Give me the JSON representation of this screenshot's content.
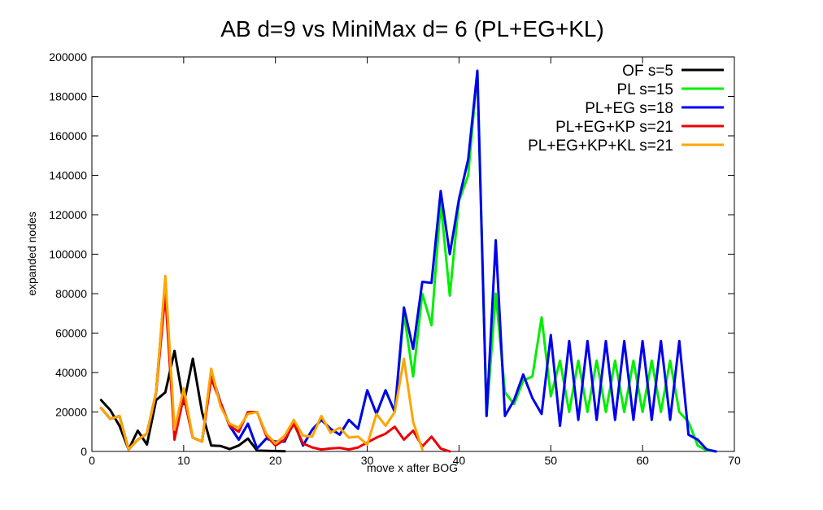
{
  "chart_data": {
    "type": "line",
    "title": "AB d=9 vs MiniMax d= 6 (PL+EG+KL)",
    "xlabel": "move x after BOG",
    "ylabel": "expanded nodes",
    "xlim": [
      0,
      70
    ],
    "ylim": [
      0,
      200000
    ],
    "x_ticks": [
      "0",
      "10",
      "20",
      "30",
      "40",
      "50",
      "60",
      "70"
    ],
    "y_ticks": [
      "0",
      "20000",
      "40000",
      "60000",
      "80000",
      "100000",
      "120000",
      "140000",
      "160000",
      "180000",
      "200000"
    ],
    "legend_position": "top-right",
    "grid": false,
    "series": [
      {
        "name": "OF s=5",
        "color": "#000000",
        "points": [
          [
            1,
            26000
          ],
          [
            2,
            21000
          ],
          [
            3,
            13000
          ],
          [
            4,
            1000
          ],
          [
            5,
            10500
          ],
          [
            6,
            3500
          ],
          [
            7,
            26000
          ],
          [
            8,
            30000
          ],
          [
            9,
            51000
          ],
          [
            10,
            24000
          ],
          [
            11,
            47000
          ],
          [
            12,
            20000
          ],
          [
            13,
            3000
          ],
          [
            14,
            2800
          ],
          [
            15,
            1200
          ],
          [
            16,
            3000
          ],
          [
            17,
            6500
          ],
          [
            18,
            400
          ],
          [
            19,
            300
          ],
          [
            20,
            200
          ],
          [
            21,
            100
          ]
        ]
      },
      {
        "name": "PL s=15",
        "color": "#00ee00",
        "points": [
          [
            1,
            22000
          ],
          [
            2,
            16500
          ],
          [
            3,
            18000
          ],
          [
            4,
            1000
          ],
          [
            5,
            6000
          ],
          [
            6,
            9000
          ],
          [
            7,
            30000
          ],
          [
            8,
            87000
          ],
          [
            9,
            8000
          ],
          [
            10,
            28000
          ],
          [
            11,
            7000
          ],
          [
            12,
            5000
          ],
          [
            13,
            40000
          ],
          [
            14,
            25000
          ],
          [
            15,
            13000
          ],
          [
            16,
            6000
          ],
          [
            17,
            14000
          ],
          [
            18,
            1500
          ],
          [
            19,
            6500
          ],
          [
            20,
            5000
          ],
          [
            21,
            5000
          ],
          [
            22,
            15000
          ],
          [
            23,
            3000
          ],
          [
            24,
            11000
          ],
          [
            25,
            16000
          ],
          [
            26,
            11500
          ],
          [
            27,
            8500
          ],
          [
            28,
            16000
          ],
          [
            29,
            11500
          ],
          [
            30,
            31000
          ],
          [
            31,
            19000
          ],
          [
            32,
            31000
          ],
          [
            33,
            20000
          ],
          [
            34,
            70000
          ],
          [
            35,
            38000
          ],
          [
            36,
            80000
          ],
          [
            37,
            64000
          ],
          [
            38,
            126000
          ],
          [
            39,
            79000
          ],
          [
            40,
            127000
          ],
          [
            41,
            140000
          ],
          [
            42,
            193000
          ],
          [
            43,
            18000
          ],
          [
            44,
            80000
          ],
          [
            45,
            30000
          ],
          [
            46,
            24000
          ],
          [
            47,
            36000
          ],
          [
            48,
            38000
          ],
          [
            49,
            68000
          ],
          [
            50,
            28000
          ],
          [
            51,
            46000
          ],
          [
            52,
            20000
          ],
          [
            53,
            46000
          ],
          [
            54,
            20000
          ],
          [
            55,
            46000
          ],
          [
            56,
            20000
          ],
          [
            57,
            46000
          ],
          [
            58,
            20000
          ],
          [
            59,
            46000
          ],
          [
            60,
            20000
          ],
          [
            61,
            46000
          ],
          [
            62,
            20000
          ],
          [
            63,
            46000
          ],
          [
            64,
            20000
          ],
          [
            65,
            15000
          ],
          [
            66,
            3000
          ],
          [
            67,
            500
          ],
          [
            68,
            0
          ]
        ]
      },
      {
        "name": "PL+EG s=18",
        "color": "#0000ee",
        "points": [
          [
            1,
            22000
          ],
          [
            2,
            16500
          ],
          [
            3,
            18000
          ],
          [
            4,
            1000
          ],
          [
            5,
            6000
          ],
          [
            6,
            9000
          ],
          [
            7,
            30000
          ],
          [
            8,
            87000
          ],
          [
            9,
            8000
          ],
          [
            10,
            28000
          ],
          [
            11,
            7000
          ],
          [
            12,
            5000
          ],
          [
            13,
            40000
          ],
          [
            14,
            25000
          ],
          [
            15,
            13000
          ],
          [
            16,
            6000
          ],
          [
            17,
            14000
          ],
          [
            18,
            1500
          ],
          [
            19,
            6500
          ],
          [
            20,
            5000
          ],
          [
            21,
            5000
          ],
          [
            22,
            15000
          ],
          [
            23,
            3000
          ],
          [
            24,
            11000
          ],
          [
            25,
            16000
          ],
          [
            26,
            11500
          ],
          [
            27,
            8500
          ],
          [
            28,
            16000
          ],
          [
            29,
            11500
          ],
          [
            30,
            31000
          ],
          [
            31,
            19000
          ],
          [
            32,
            31000
          ],
          [
            33,
            20000
          ],
          [
            34,
            73000
          ],
          [
            35,
            52000
          ],
          [
            36,
            86000
          ],
          [
            37,
            85500
          ],
          [
            38,
            132000
          ],
          [
            39,
            100000
          ],
          [
            40,
            128000
          ],
          [
            41,
            148000
          ],
          [
            42,
            193000
          ],
          [
            43,
            18000
          ],
          [
            44,
            107000
          ],
          [
            45,
            18000
          ],
          [
            46,
            26000
          ],
          [
            47,
            39000
          ],
          [
            48,
            27000
          ],
          [
            49,
            19000
          ],
          [
            50,
            59000
          ],
          [
            51,
            13000
          ],
          [
            52,
            56000
          ],
          [
            53,
            16000
          ],
          [
            54,
            56000
          ],
          [
            55,
            16000
          ],
          [
            56,
            56000
          ],
          [
            57,
            16000
          ],
          [
            58,
            56000
          ],
          [
            59,
            16000
          ],
          [
            60,
            56000
          ],
          [
            61,
            16000
          ],
          [
            62,
            56000
          ],
          [
            63,
            16000
          ],
          [
            64,
            56000
          ],
          [
            65,
            8500
          ],
          [
            66,
            6000
          ],
          [
            67,
            1000
          ],
          [
            68,
            0
          ]
        ]
      },
      {
        "name": "PL+EG+KP s=21",
        "color": "#ee0000",
        "points": [
          [
            1,
            22000
          ],
          [
            2,
            16500
          ],
          [
            3,
            18000
          ],
          [
            4,
            1000
          ],
          [
            5,
            6000
          ],
          [
            6,
            9000
          ],
          [
            7,
            30000
          ],
          [
            8,
            80000
          ],
          [
            9,
            6000
          ],
          [
            10,
            28000
          ],
          [
            11,
            7000
          ],
          [
            12,
            5000
          ],
          [
            13,
            37000
          ],
          [
            14,
            25000
          ],
          [
            15,
            13000
          ],
          [
            16,
            10000
          ],
          [
            17,
            20000
          ],
          [
            18,
            20000
          ],
          [
            19,
            8000
          ],
          [
            20,
            3000
          ],
          [
            21,
            6000
          ],
          [
            22,
            14000
          ],
          [
            23,
            4000
          ],
          [
            24,
            2000
          ],
          [
            25,
            1000
          ],
          [
            26,
            1500
          ],
          [
            27,
            1800
          ],
          [
            28,
            1000
          ],
          [
            29,
            2000
          ],
          [
            30,
            4500
          ],
          [
            31,
            7000
          ],
          [
            32,
            9000
          ],
          [
            33,
            12500
          ],
          [
            34,
            6000
          ],
          [
            35,
            10500
          ],
          [
            36,
            2500
          ],
          [
            37,
            7500
          ],
          [
            38,
            1500
          ],
          [
            39,
            0
          ]
        ]
      },
      {
        "name": "PL+EG+KP+KL s=21",
        "color": "#ffa500",
        "points": [
          [
            1,
            22000
          ],
          [
            2,
            16500
          ],
          [
            3,
            18000
          ],
          [
            4,
            1000
          ],
          [
            5,
            6000
          ],
          [
            6,
            9000
          ],
          [
            7,
            30000
          ],
          [
            8,
            89000
          ],
          [
            9,
            11000
          ],
          [
            10,
            32000
          ],
          [
            11,
            7000
          ],
          [
            12,
            5000
          ],
          [
            13,
            42000
          ],
          [
            14,
            23000
          ],
          [
            15,
            14000
          ],
          [
            16,
            12000
          ],
          [
            17,
            19000
          ],
          [
            18,
            20000
          ],
          [
            19,
            9000
          ],
          [
            20,
            4000
          ],
          [
            21,
            8000
          ],
          [
            22,
            16000
          ],
          [
            23,
            8000
          ],
          [
            24,
            7500
          ],
          [
            25,
            18000
          ],
          [
            26,
            9500
          ],
          [
            27,
            12000
          ],
          [
            28,
            7000
          ],
          [
            29,
            7500
          ],
          [
            30,
            3500
          ],
          [
            31,
            19000
          ],
          [
            32,
            13000
          ],
          [
            33,
            20000
          ],
          [
            34,
            47000
          ],
          [
            35,
            15000
          ],
          [
            36,
            1000
          ]
        ]
      }
    ]
  }
}
